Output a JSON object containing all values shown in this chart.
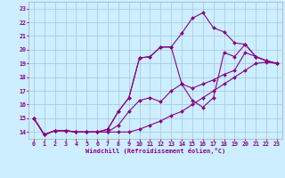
{
  "xlabel": "Windchill (Refroidissement éolien,°C)",
  "bg_color": "#cceeff",
  "grid_color": "#aaccdd",
  "line_color": "#880088",
  "xlim": [
    -0.5,
    23.5
  ],
  "ylim": [
    13.5,
    23.5
  ],
  "yticks": [
    14,
    15,
    16,
    17,
    18,
    19,
    20,
    21,
    22,
    23
  ],
  "xticks": [
    0,
    1,
    2,
    3,
    4,
    5,
    6,
    7,
    8,
    9,
    10,
    11,
    12,
    13,
    14,
    15,
    16,
    17,
    18,
    19,
    20,
    21,
    22,
    23
  ],
  "curves": [
    {
      "x": [
        0,
        1,
        2,
        3,
        4,
        5,
        6,
        7,
        8,
        9,
        10,
        11,
        12,
        13,
        14,
        15,
        16,
        17,
        18,
        19,
        20,
        21,
        22,
        23
      ],
      "y": [
        15,
        13.8,
        14.1,
        14.1,
        14.0,
        14.0,
        14.0,
        14.0,
        14.0,
        14.0,
        14.2,
        14.5,
        14.8,
        15.2,
        15.5,
        16.0,
        16.5,
        17.0,
        17.5,
        18.0,
        18.5,
        19.0,
        19.1,
        19.0
      ]
    },
    {
      "x": [
        0,
        1,
        2,
        3,
        4,
        5,
        6,
        7,
        8,
        9,
        10,
        11,
        12,
        13,
        14,
        15,
        16,
        17,
        18,
        19,
        20,
        21,
        22,
        23
      ],
      "y": [
        15,
        13.8,
        14.1,
        14.1,
        14.0,
        14.0,
        14.0,
        14.0,
        14.5,
        15.5,
        16.3,
        16.5,
        16.2,
        17.0,
        17.5,
        17.2,
        17.5,
        17.8,
        18.2,
        18.5,
        19.8,
        19.5,
        19.2,
        19.0
      ]
    },
    {
      "x": [
        0,
        1,
        2,
        3,
        4,
        5,
        6,
        7,
        8,
        9,
        10,
        11,
        12,
        13,
        14,
        15,
        16,
        17,
        18,
        19,
        20,
        21,
        22,
        23
      ],
      "y": [
        15,
        13.8,
        14.1,
        14.1,
        14.0,
        14.0,
        14.0,
        14.2,
        15.5,
        16.5,
        19.4,
        19.5,
        20.2,
        20.2,
        17.5,
        16.3,
        15.8,
        16.5,
        19.8,
        19.5,
        20.4,
        19.5,
        19.2,
        19.0
      ]
    },
    {
      "x": [
        0,
        1,
        2,
        3,
        4,
        5,
        6,
        7,
        8,
        9,
        10,
        11,
        12,
        13,
        14,
        15,
        16,
        17,
        18,
        19,
        20,
        21,
        22,
        23
      ],
      "y": [
        15,
        13.8,
        14.1,
        14.1,
        14.0,
        14.0,
        14.0,
        14.2,
        15.5,
        16.5,
        19.4,
        19.5,
        20.2,
        20.2,
        21.2,
        22.3,
        22.7,
        21.6,
        21.3,
        20.5,
        20.4,
        19.5,
        19.2,
        19.0
      ]
    }
  ]
}
